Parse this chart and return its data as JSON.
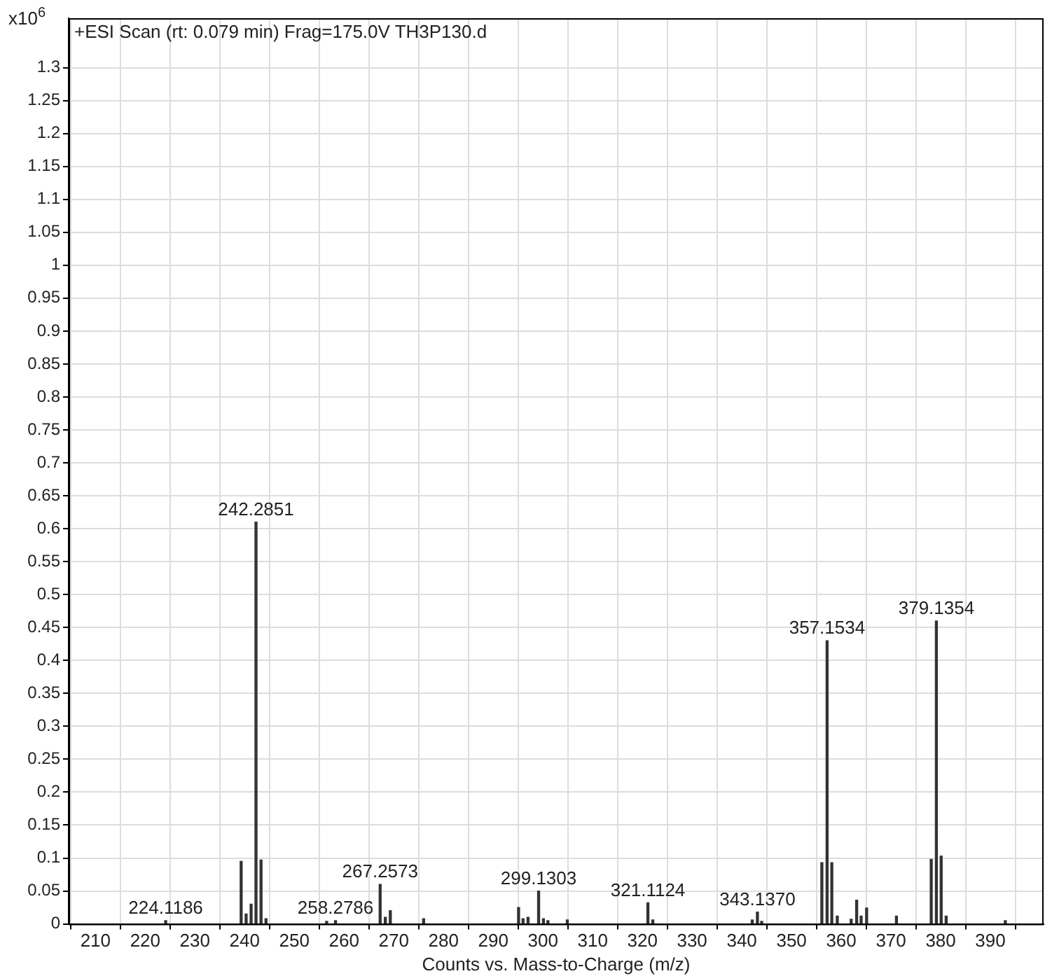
{
  "chart_data": {
    "type": "bar",
    "title": "+ESI Scan (rt: 0.079 min) Frag=175.0V TH3P130.d",
    "xlabel": "Counts vs. Mass-to-Charge (m/z)",
    "ylabel": "x10$^{6}$",
    "x": [
      224.1186,
      239.3,
      240.3,
      241.3,
      242.2851,
      243.3,
      244.3,
      256.5,
      258.2786,
      267.2573,
      268.3,
      269.3,
      276.0,
      295.1,
      296.0,
      297.0,
      299.1303,
      300.1,
      301.0,
      304.9,
      321.1124,
      322.1,
      342.1,
      343.137,
      344.0,
      356.1,
      357.1534,
      358.1,
      359.2,
      362.0,
      363.1,
      364.0,
      365.1,
      371.1,
      378.1,
      379.1354,
      380.1,
      381.1,
      393.0
    ],
    "values": [
      0.005,
      0.095,
      0.015,
      0.03,
      0.61,
      0.097,
      0.008,
      0.004,
      0.005,
      0.06,
      0.01,
      0.02,
      0.008,
      0.025,
      0.008,
      0.01,
      0.05,
      0.008,
      0.005,
      0.006,
      0.032,
      0.006,
      0.006,
      0.018,
      0.004,
      0.093,
      0.43,
      0.093,
      0.012,
      0.007,
      0.036,
      0.012,
      0.024,
      0.012,
      0.098,
      0.46,
      0.103,
      0.012,
      0.005
    ],
    "annotations": [
      {
        "text": "224.1186",
        "x": 224.1186,
        "y": 0.005
      },
      {
        "text": "242.2851",
        "x": 242.2851,
        "y": 0.61
      },
      {
        "text": "258.2786",
        "x": 258.2786,
        "y": 0.005
      },
      {
        "text": "267.2573",
        "x": 267.2573,
        "y": 0.06
      },
      {
        "text": "299.1303",
        "x": 299.1303,
        "y": 0.05
      },
      {
        "text": "321.1124",
        "x": 321.1124,
        "y": 0.032
      },
      {
        "text": "343.1370",
        "x": 343.137,
        "y": 0.018
      },
      {
        "text": "357.1534",
        "x": 357.1534,
        "y": 0.43
      },
      {
        "text": "379.1354",
        "x": 379.1354,
        "y": 0.46
      }
    ],
    "color": "#333333",
    "xlim": [
      204.6,
      400.7
    ],
    "xticks": [
      210,
      220,
      230,
      240,
      250,
      260,
      270,
      280,
      290,
      300,
      310,
      320,
      330,
      340,
      350,
      360,
      370,
      380,
      390
    ],
    "ylim": [
      0,
      1.375
    ],
    "yticks": [
      0,
      0.05,
      0.1,
      0.15,
      0.2,
      0.25,
      0.3,
      0.35,
      0.4,
      0.45,
      0.5,
      0.55,
      0.6,
      0.65,
      0.7,
      0.75,
      0.8,
      0.85,
      0.9,
      0.95,
      1,
      1.05,
      1.1,
      1.15,
      1.2,
      1.25,
      1.3
    ],
    "grid": true,
    "legend": false
  }
}
